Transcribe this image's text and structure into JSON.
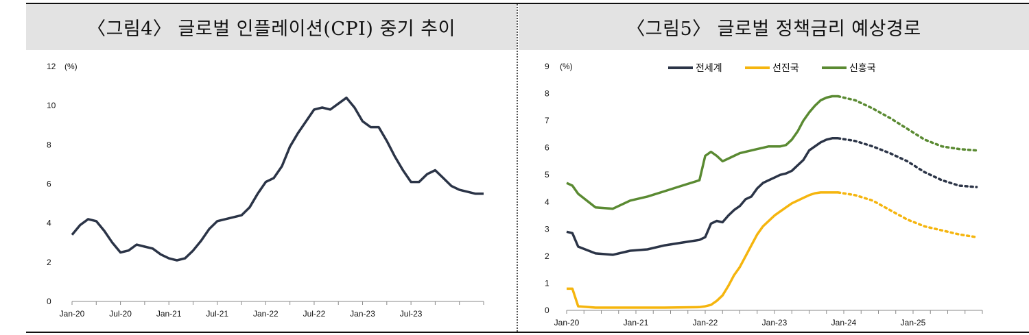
{
  "chart_data": [
    {
      "type": "line",
      "title": "〈그림4〉 글로벌 인플레이션(CPI) 중기 추이",
      "unit_label": "(%)",
      "ylim": [
        0,
        12
      ],
      "y_ticks": [
        "0",
        "2",
        "4",
        "6",
        "8",
        "10",
        "12"
      ],
      "x_tick_labels": [
        "Jan-20",
        "Jul-20",
        "Jan-21",
        "Jul-21",
        "Jan-22",
        "Jul-22",
        "Jan-23",
        "Jul-23"
      ],
      "x_range": [
        "2020-01",
        "2024-04"
      ],
      "color": "#2b3447",
      "series": [
        {
          "x": [
            "2020-01",
            "2020-02",
            "2020-03",
            "2020-04",
            "2020-05",
            "2020-06",
            "2020-07",
            "2020-08",
            "2020-09",
            "2020-10",
            "2020-11",
            "2020-12",
            "2021-01",
            "2021-02",
            "2021-03",
            "2021-04",
            "2021-05",
            "2021-06",
            "2021-07",
            "2021-08",
            "2021-09",
            "2021-10",
            "2021-11",
            "2021-12",
            "2022-01",
            "2022-02",
            "2022-03",
            "2022-04",
            "2022-05",
            "2022-06",
            "2022-07",
            "2022-08",
            "2022-09",
            "2022-10",
            "2022-11",
            "2022-12",
            "2023-01",
            "2023-02",
            "2023-03",
            "2023-04",
            "2023-05",
            "2023-06",
            "2023-07",
            "2023-08",
            "2023-09",
            "2023-10",
            "2023-11",
            "2023-12",
            "2024-01",
            "2024-02",
            "2024-03",
            "2024-04"
          ],
          "values": [
            3.4,
            3.9,
            4.2,
            4.1,
            3.6,
            3.0,
            2.5,
            2.6,
            2.9,
            2.8,
            2.7,
            2.4,
            2.2,
            2.1,
            2.2,
            2.6,
            3.1,
            3.7,
            4.1,
            4.2,
            4.3,
            4.4,
            4.8,
            5.5,
            6.1,
            6.3,
            6.9,
            7.9,
            8.6,
            9.2,
            9.8,
            9.9,
            9.8,
            10.1,
            10.4,
            9.9,
            9.2,
            8.9,
            8.9,
            8.2,
            7.4,
            6.7,
            6.1,
            6.1,
            6.5,
            6.7,
            6.3,
            5.9,
            5.7,
            5.6,
            5.5,
            5.5
          ]
        }
      ]
    },
    {
      "type": "line",
      "title": "〈그림5〉 글로벌 정책금리 예상경로",
      "unit_label": "(%)",
      "ylim": [
        0,
        9
      ],
      "y_ticks": [
        "0",
        "1",
        "2",
        "3",
        "4",
        "5",
        "6",
        "7",
        "8",
        "9"
      ],
      "x_tick_labels": [
        "Jan-20",
        "Jan-21",
        "Jan-22",
        "Jan-23",
        "Jan-24",
        "Jan-25"
      ],
      "x_range": [
        "2020-01",
        "2026-01"
      ],
      "legend_position": "top",
      "series": [
        {
          "name": "전세계",
          "color": "#2b3447",
          "actual": {
            "x": [
              "2020-01",
              "2020-02",
              "2020-03",
              "2020-06",
              "2020-09",
              "2020-12",
              "2021-03",
              "2021-06",
              "2021-09",
              "2021-12",
              "2022-01",
              "2022-02",
              "2022-03",
              "2022-04",
              "2022-05",
              "2022-06",
              "2022-07",
              "2022-08",
              "2022-09",
              "2022-10",
              "2022-11",
              "2022-12",
              "2023-01",
              "2023-02",
              "2023-03",
              "2023-04",
              "2023-05",
              "2023-06",
              "2023-07",
              "2023-08",
              "2023-09",
              "2023-10",
              "2023-11",
              "2023-12"
            ],
            "values": [
              2.9,
              2.85,
              2.35,
              2.1,
              2.05,
              2.2,
              2.25,
              2.4,
              2.5,
              2.6,
              2.7,
              3.2,
              3.3,
              3.25,
              3.5,
              3.7,
              3.85,
              4.1,
              4.2,
              4.5,
              4.7,
              4.8,
              4.9,
              5.0,
              5.05,
              5.15,
              5.35,
              5.55,
              5.9,
              6.05,
              6.2,
              6.3,
              6.35,
              6.35
            ]
          },
          "forecast": {
            "x": [
              "2023-12",
              "2024-03",
              "2024-06",
              "2024-09",
              "2024-12",
              "2025-03",
              "2025-06",
              "2025-09",
              "2025-12"
            ],
            "values": [
              6.35,
              6.25,
              6.05,
              5.8,
              5.5,
              5.1,
              4.8,
              4.6,
              4.55
            ]
          }
        },
        {
          "name": "선진국",
          "color": "#f5b50e",
          "actual": {
            "x": [
              "2020-01",
              "2020-02",
              "2020-03",
              "2020-06",
              "2020-12",
              "2021-06",
              "2021-12",
              "2022-01",
              "2022-02",
              "2022-03",
              "2022-04",
              "2022-05",
              "2022-06",
              "2022-07",
              "2022-08",
              "2022-09",
              "2022-10",
              "2022-11",
              "2022-12",
              "2023-01",
              "2023-02",
              "2023-03",
              "2023-04",
              "2023-05",
              "2023-06",
              "2023-07",
              "2023-08",
              "2023-09",
              "2023-10",
              "2023-11",
              "2023-12"
            ],
            "values": [
              0.8,
              0.8,
              0.15,
              0.1,
              0.1,
              0.1,
              0.12,
              0.15,
              0.2,
              0.35,
              0.55,
              0.9,
              1.3,
              1.6,
              2.0,
              2.4,
              2.8,
              3.1,
              3.3,
              3.5,
              3.65,
              3.8,
              3.95,
              4.05,
              4.15,
              4.25,
              4.32,
              4.35,
              4.35,
              4.35,
              4.35
            ]
          },
          "forecast": {
            "x": [
              "2023-12",
              "2024-03",
              "2024-06",
              "2024-09",
              "2024-12",
              "2025-03",
              "2025-06",
              "2025-09",
              "2025-12"
            ],
            "values": [
              4.35,
              4.25,
              4.05,
              3.7,
              3.35,
              3.1,
              2.95,
              2.8,
              2.7
            ]
          }
        },
        {
          "name": "신흥국",
          "color": "#5a8a32",
          "actual": {
            "x": [
              "2020-01",
              "2020-02",
              "2020-03",
              "2020-06",
              "2020-09",
              "2020-12",
              "2021-03",
              "2021-06",
              "2021-09",
              "2021-12",
              "2022-01",
              "2022-02",
              "2022-03",
              "2022-04",
              "2022-05",
              "2022-06",
              "2022-07",
              "2022-08",
              "2022-09",
              "2022-10",
              "2022-11",
              "2022-12",
              "2023-01",
              "2023-02",
              "2023-03",
              "2023-04",
              "2023-05",
              "2023-06",
              "2023-07",
              "2023-08",
              "2023-09",
              "2023-10",
              "2023-11",
              "2023-12"
            ],
            "values": [
              4.7,
              4.6,
              4.3,
              3.8,
              3.75,
              4.05,
              4.2,
              4.4,
              4.6,
              4.8,
              5.7,
              5.85,
              5.7,
              5.5,
              5.6,
              5.7,
              5.8,
              5.85,
              5.9,
              5.95,
              6.0,
              6.05,
              6.05,
              6.05,
              6.1,
              6.3,
              6.6,
              7.0,
              7.3,
              7.55,
              7.75,
              7.85,
              7.9,
              7.9
            ]
          },
          "forecast": {
            "x": [
              "2023-12",
              "2024-03",
              "2024-06",
              "2024-09",
              "2024-12",
              "2025-03",
              "2025-06",
              "2025-09",
              "2025-12"
            ],
            "values": [
              7.9,
              7.75,
              7.45,
              7.1,
              6.7,
              6.3,
              6.05,
              5.95,
              5.9
            ]
          }
        }
      ]
    }
  ]
}
